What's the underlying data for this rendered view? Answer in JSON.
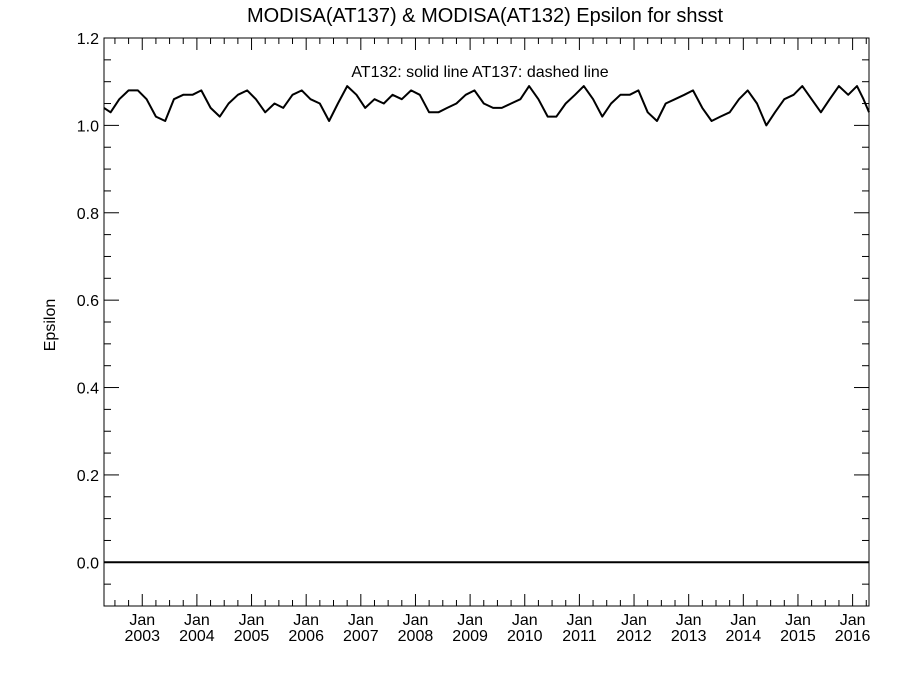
{
  "chart_data": {
    "type": "line",
    "title": "MODISA(AT137) & MODISA(AT132)  Epsilon for shsst",
    "ylabel": "Epsilon",
    "xlabel": "",
    "annotation": "AT132: solid line   AT137: dashed line",
    "ylim": [
      -0.1,
      1.2
    ],
    "xlim": [
      2002.3,
      2016.3
    ],
    "yticks": [
      {
        "value": 0.0,
        "label": "0.0"
      },
      {
        "value": 0.2,
        "label": "0.2"
      },
      {
        "value": 0.4,
        "label": "0.4"
      },
      {
        "value": 0.6,
        "label": "0.6"
      },
      {
        "value": 0.8,
        "label": "0.8"
      },
      {
        "value": 1.0,
        "label": "1.0"
      },
      {
        "value": 1.2,
        "label": "1.2"
      }
    ],
    "xticks": [
      {
        "value": 2003.0,
        "month": "Jan",
        "year": "2003"
      },
      {
        "value": 2004.0,
        "month": "Jan",
        "year": "2004"
      },
      {
        "value": 2005.0,
        "month": "Jan",
        "year": "2005"
      },
      {
        "value": 2006.0,
        "month": "Jan",
        "year": "2006"
      },
      {
        "value": 2007.0,
        "month": "Jan",
        "year": "2007"
      },
      {
        "value": 2008.0,
        "month": "Jan",
        "year": "2008"
      },
      {
        "value": 2009.0,
        "month": "Jan",
        "year": "2009"
      },
      {
        "value": 2010.0,
        "month": "Jan",
        "year": "2010"
      },
      {
        "value": 2011.0,
        "month": "Jan",
        "year": "2011"
      },
      {
        "value": 2012.0,
        "month": "Jan",
        "year": "2012"
      },
      {
        "value": 2013.0,
        "month": "Jan",
        "year": "2013"
      },
      {
        "value": 2014.0,
        "month": "Jan",
        "year": "2014"
      },
      {
        "value": 2015.0,
        "month": "Jan",
        "year": "2015"
      },
      {
        "value": 2016.0,
        "month": "Jan",
        "year": "2016"
      }
    ],
    "series": [
      {
        "style": "solid",
        "x": [
          2002.3,
          2002.42,
          2002.58,
          2002.75,
          2002.92,
          2003.08,
          2003.25,
          2003.42,
          2003.58,
          2003.75,
          2003.92,
          2004.08,
          2004.25,
          2004.42,
          2004.58,
          2004.75,
          2004.92,
          2005.08,
          2005.25,
          2005.42,
          2005.58,
          2005.75,
          2005.92,
          2006.08,
          2006.25,
          2006.42,
          2006.58,
          2006.75,
          2006.92,
          2007.08,
          2007.25,
          2007.42,
          2007.58,
          2007.75,
          2007.92,
          2008.08,
          2008.25,
          2008.42,
          2008.58,
          2008.75,
          2008.92,
          2009.08,
          2009.25,
          2009.42,
          2009.58,
          2009.75,
          2009.92,
          2010.08,
          2010.25,
          2010.42,
          2010.58,
          2010.75,
          2010.92,
          2011.08,
          2011.25,
          2011.42,
          2011.58,
          2011.75,
          2011.92,
          2012.08,
          2012.25,
          2012.42,
          2012.58,
          2012.75,
          2012.92,
          2013.08,
          2013.25,
          2013.42,
          2013.58,
          2013.75,
          2013.92,
          2014.08,
          2014.25,
          2014.42,
          2014.58,
          2014.75,
          2014.92,
          2015.08,
          2015.25,
          2015.42,
          2015.58,
          2015.75,
          2015.92,
          2016.08,
          2016.2,
          2016.3
        ],
        "y": [
          1.04,
          1.03,
          1.06,
          1.08,
          1.08,
          1.06,
          1.02,
          1.01,
          1.06,
          1.07,
          1.07,
          1.08,
          1.04,
          1.02,
          1.05,
          1.07,
          1.08,
          1.06,
          1.03,
          1.05,
          1.04,
          1.07,
          1.08,
          1.06,
          1.05,
          1.01,
          1.05,
          1.09,
          1.07,
          1.04,
          1.06,
          1.05,
          1.07,
          1.06,
          1.08,
          1.07,
          1.03,
          1.03,
          1.04,
          1.05,
          1.07,
          1.08,
          1.05,
          1.04,
          1.04,
          1.05,
          1.06,
          1.09,
          1.06,
          1.02,
          1.02,
          1.05,
          1.07,
          1.09,
          1.06,
          1.02,
          1.05,
          1.07,
          1.07,
          1.08,
          1.03,
          1.01,
          1.05,
          1.06,
          1.07,
          1.08,
          1.04,
          1.01,
          1.02,
          1.03,
          1.06,
          1.08,
          1.05,
          1.0,
          1.03,
          1.06,
          1.07,
          1.09,
          1.06,
          1.03,
          1.06,
          1.09,
          1.07,
          1.09,
          1.06,
          1.03
        ]
      },
      {
        "style": "dashed",
        "x": [
          2002.3,
          2016.3
        ],
        "y": [
          0.0,
          0.0
        ]
      }
    ]
  }
}
